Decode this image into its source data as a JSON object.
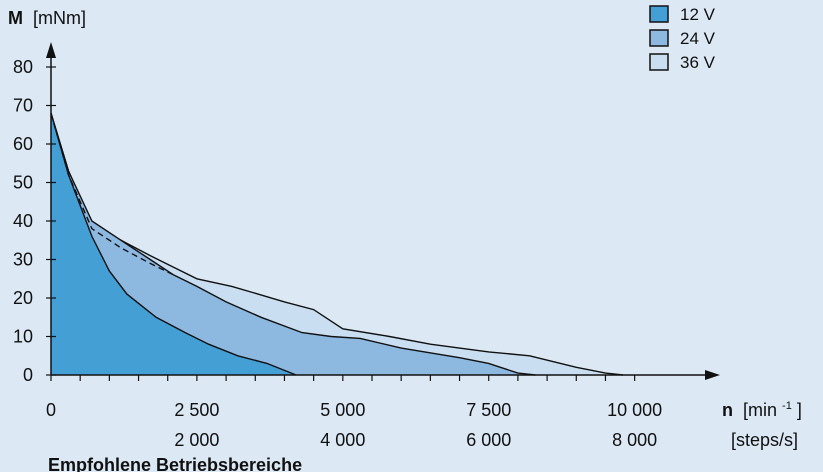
{
  "chart_data": {
    "type": "area",
    "title": "",
    "footer": "Empfohlene Betriebsbereiche",
    "y_axis": {
      "label_bold": "M",
      "label_unit": "[mNm]",
      "range": [
        0,
        80
      ],
      "ticks": [
        0,
        10,
        20,
        30,
        40,
        50,
        60,
        70,
        80
      ]
    },
    "x_axis": {
      "label_bold": "n",
      "label_unit_prefix": "[min",
      "label_unit_sup": "-1",
      "label_unit_suffix": "]",
      "secondary_unit": "[steps/s]",
      "range": [
        0,
        11000
      ],
      "ticks": [
        {
          "value": 0,
          "label": "0",
          "secondary": ""
        },
        {
          "value": 2500,
          "label": "2 500",
          "secondary": "2 000"
        },
        {
          "value": 5000,
          "label": "5 000",
          "secondary": "4 000"
        },
        {
          "value": 7500,
          "label": "7 500",
          "secondary": "6 000"
        },
        {
          "value": 10000,
          "label": "10 000",
          "secondary": "8 000"
        }
      ],
      "minor_step": 500
    },
    "series": [
      {
        "name": "36 V",
        "color": "#c9def0",
        "points": [
          [
            0,
            68
          ],
          [
            300,
            53
          ],
          [
            700,
            39
          ],
          [
            1200,
            35
          ],
          [
            1700,
            31
          ],
          [
            2100,
            28
          ],
          [
            2500,
            25
          ],
          [
            3100,
            23
          ],
          [
            4000,
            19
          ],
          [
            4500,
            17
          ],
          [
            5000,
            12
          ],
          [
            5800,
            10
          ],
          [
            6500,
            8
          ],
          [
            7500,
            6
          ],
          [
            8200,
            5
          ],
          [
            9000,
            2
          ],
          [
            9500,
            0.5
          ],
          [
            9800,
            0
          ]
        ]
      },
      {
        "name": "24 V",
        "color": "#8db8e0",
        "points": [
          [
            0,
            68
          ],
          [
            300,
            53
          ],
          [
            700,
            40
          ],
          [
            1200,
            35
          ],
          [
            1700,
            30
          ],
          [
            2100,
            26
          ],
          [
            2500,
            23
          ],
          [
            3000,
            19
          ],
          [
            3600,
            15
          ],
          [
            4300,
            11
          ],
          [
            4800,
            10
          ],
          [
            5300,
            9.5
          ],
          [
            6000,
            7
          ],
          [
            7000,
            4.5
          ],
          [
            7500,
            3
          ],
          [
            8000,
            0.5
          ],
          [
            8300,
            0
          ]
        ]
      },
      {
        "name": "12 V",
        "color": "#449fd5",
        "points": [
          [
            0,
            68
          ],
          [
            300,
            52
          ],
          [
            700,
            36
          ],
          [
            1000,
            27
          ],
          [
            1300,
            21
          ],
          [
            1800,
            15
          ],
          [
            2300,
            11
          ],
          [
            2700,
            8
          ],
          [
            3200,
            5
          ],
          [
            3700,
            3
          ],
          [
            4200,
            0
          ]
        ]
      }
    ],
    "dashed_curve": [
      [
        0,
        68
      ],
      [
        300,
        52
      ],
      [
        700,
        38
      ],
      [
        1200,
        33
      ],
      [
        1700,
        29
      ],
      [
        2100,
        26
      ]
    ],
    "legend": {
      "position": "top-right",
      "items": [
        {
          "label": "12 V",
          "color": "#449fd5"
        },
        {
          "label": "24 V",
          "color": "#8db8e0"
        },
        {
          "label": "36 V",
          "color": "#c9def0"
        }
      ]
    }
  }
}
